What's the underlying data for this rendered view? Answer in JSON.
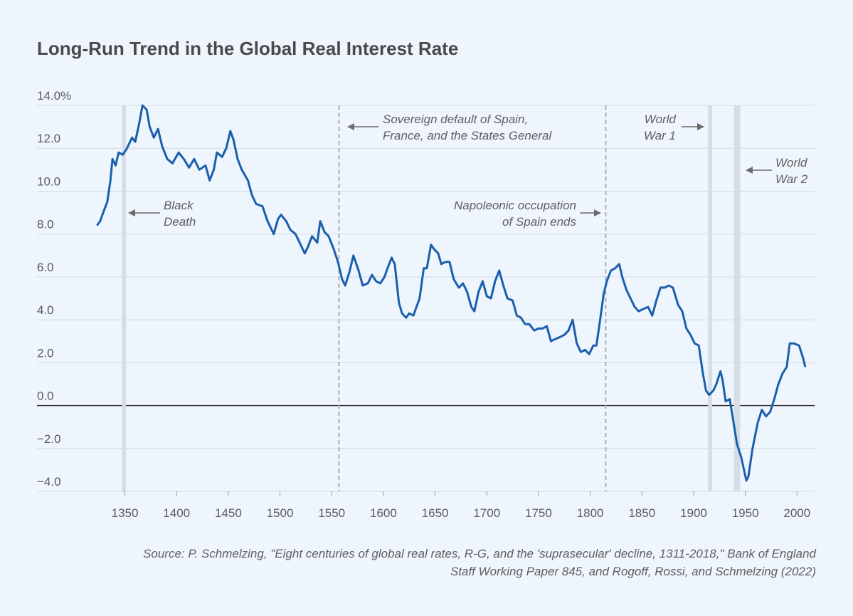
{
  "chart_data": {
    "type": "line",
    "title": "Long-Run Trend in the Global Real Interest Rate",
    "color": "#1a5fad",
    "xlim": [
      1265,
      2017
    ],
    "ylim": [
      -4,
      14
    ],
    "xticks": [
      1350,
      1400,
      1450,
      1500,
      1550,
      1600,
      1650,
      1700,
      1750,
      1800,
      1850,
      1900,
      1950,
      2000
    ],
    "yticks": [
      {
        "value": -4,
        "label": "−4.0"
      },
      {
        "value": -2,
        "label": "−2.0"
      },
      {
        "value": 0,
        "label": "0.0"
      },
      {
        "value": 2,
        "label": "2.0"
      },
      {
        "value": 4,
        "label": "4.0"
      },
      {
        "value": 6,
        "label": "6.0"
      },
      {
        "value": 8,
        "label": "8.0"
      },
      {
        "value": 10,
        "label": "10.0"
      },
      {
        "value": 12,
        "label": "12.0"
      },
      {
        "value": 14,
        "label": "14.0%"
      }
    ],
    "grid": true,
    "x": [
      1323,
      1326,
      1329,
      1333,
      1336,
      1338,
      1341,
      1344,
      1348,
      1352,
      1357,
      1360,
      1364,
      1367,
      1371,
      1374,
      1378,
      1382,
      1386,
      1391,
      1396,
      1402,
      1407,
      1412,
      1417,
      1422,
      1428,
      1432,
      1436,
      1439,
      1444,
      1448,
      1452,
      1455,
      1459,
      1463,
      1469,
      1473,
      1477,
      1483,
      1488,
      1491,
      1494,
      1498,
      1501,
      1506,
      1510,
      1515,
      1520,
      1524,
      1527,
      1531,
      1536,
      1539,
      1543,
      1547,
      1552,
      1556,
      1560,
      1563,
      1567,
      1571,
      1576,
      1580,
      1585,
      1589,
      1593,
      1597,
      1601,
      1604,
      1608,
      1611,
      1615,
      1618,
      1622,
      1625,
      1629,
      1632,
      1635,
      1639,
      1642,
      1646,
      1649,
      1653,
      1656,
      1660,
      1664,
      1668,
      1673,
      1677,
      1681,
      1685,
      1688,
      1692,
      1696,
      1700,
      1704,
      1708,
      1712,
      1716,
      1720,
      1725,
      1729,
      1733,
      1737,
      1741,
      1746,
      1750,
      1754,
      1758,
      1762,
      1766,
      1771,
      1775,
      1779,
      1783,
      1787,
      1791,
      1795,
      1799,
      1803,
      1806,
      1809,
      1813,
      1816,
      1820,
      1824,
      1828,
      1831,
      1835,
      1839,
      1843,
      1847,
      1851,
      1856,
      1860,
      1864,
      1868,
      1872,
      1876,
      1880,
      1885,
      1889,
      1893,
      1897,
      1901,
      1905,
      1909,
      1912,
      1915,
      1919,
      1922,
      1926,
      1928,
      1931,
      1935,
      1938,
      1942,
      1946,
      1951,
      1953,
      1957,
      1962,
      1966,
      1970,
      1974,
      1978,
      1982,
      1986,
      1990,
      1993,
      1997,
      2002,
      2006,
      2008
    ],
    "values": [
      8.4,
      8.6,
      9.0,
      9.5,
      10.5,
      11.5,
      11.2,
      11.8,
      11.7,
      12.0,
      12.5,
      12.3,
      13.2,
      14.0,
      13.8,
      13.0,
      12.5,
      12.9,
      12.1,
      11.5,
      11.3,
      11.8,
      11.5,
      11.1,
      11.5,
      11.0,
      11.2,
      10.5,
      11.0,
      11.8,
      11.6,
      12.0,
      12.8,
      12.4,
      11.5,
      11.0,
      10.5,
      9.8,
      9.4,
      9.3,
      8.6,
      8.3,
      8.0,
      8.7,
      8.9,
      8.6,
      8.2,
      8.0,
      7.5,
      7.1,
      7.4,
      7.9,
      7.6,
      8.6,
      8.1,
      7.9,
      7.3,
      6.7,
      5.9,
      5.6,
      6.2,
      7.0,
      6.3,
      5.6,
      5.7,
      6.1,
      5.8,
      5.7,
      6.0,
      6.4,
      6.9,
      6.6,
      4.8,
      4.3,
      4.1,
      4.3,
      4.2,
      4.6,
      5.0,
      6.4,
      6.4,
      7.5,
      7.3,
      7.1,
      6.6,
      6.7,
      6.7,
      5.9,
      5.5,
      5.7,
      5.3,
      4.6,
      4.4,
      5.3,
      5.8,
      5.1,
      5.0,
      5.8,
      6.3,
      5.6,
      5.0,
      4.9,
      4.2,
      4.1,
      3.8,
      3.8,
      3.5,
      3.6,
      3.6,
      3.7,
      3.0,
      3.1,
      3.2,
      3.3,
      3.5,
      4.0,
      2.9,
      2.5,
      2.6,
      2.4,
      2.8,
      2.8,
      3.8,
      5.2,
      5.8,
      6.3,
      6.4,
      6.6,
      6.0,
      5.4,
      5.0,
      4.6,
      4.4,
      4.5,
      4.6,
      4.2,
      4.9,
      5.5,
      5.5,
      5.6,
      5.5,
      4.7,
      4.4,
      3.6,
      3.3,
      2.9,
      2.8,
      1.5,
      0.7,
      0.5,
      0.7,
      1.0,
      1.6,
      1.2,
      0.2,
      0.3,
      -0.6,
      -1.8,
      -2.4,
      -3.5,
      -3.3,
      -2.0,
      -0.8,
      -0.2,
      -0.5,
      -0.3,
      0.3,
      1.0,
      1.5,
      1.8,
      2.9,
      2.9,
      2.8,
      2.2,
      1.8
    ],
    "events": [
      {
        "kind": "band",
        "span": [
          1347,
          1351
        ],
        "lines": [
          "Black",
          "Death"
        ]
      },
      {
        "kind": "dashed",
        "span": [
          1557,
          1557
        ],
        "lines": [
          "Sovereign default of Spain,",
          "France, and the States General"
        ]
      },
      {
        "kind": "dashed",
        "span": [
          1815,
          1815
        ],
        "lines": [
          "Napoleonic occupation",
          "of Spain ends"
        ]
      },
      {
        "kind": "band",
        "span": [
          1914,
          1918
        ],
        "lines": [
          "World",
          "War 1"
        ]
      },
      {
        "kind": "band",
        "span": [
          1939,
          1945
        ],
        "lines": [
          "World",
          "War 2"
        ]
      }
    ],
    "source": [
      "Source: P. Schmelzing, \"Eight centuries of global real rates, R-G, and the 'suprasecular' decline, 1311-2018,\" Bank of England",
      "Staff Working Paper 845, and Rogoff, Rossi, and Schmelzing (2022)"
    ]
  }
}
